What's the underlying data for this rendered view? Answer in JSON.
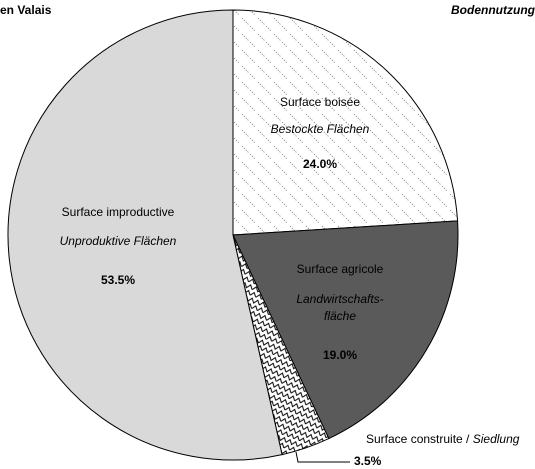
{
  "chart_data": {
    "type": "pie",
    "title": "en Valais",
    "subtitle": "Bodennutzung",
    "categories": [
      "Surface boisée",
      "Surface agricole",
      "Surface construite",
      "Surface improductive"
    ],
    "categories_de": [
      [
        "Bestockte Flächen"
      ],
      [
        "Landwirtschafts-",
        "fläche"
      ],
      [
        "Siedlung"
      ],
      [
        "Unproduktive Flächen"
      ]
    ],
    "label_separator": " / ",
    "values": [
      24.0,
      19.0,
      3.5,
      53.5
    ],
    "value_labels": [
      "24.0%",
      "19.0%",
      "3.5%",
      "53.5%"
    ],
    "colors": [
      "url(#pat-wood)",
      "#5a5a5a",
      "url(#pat-built)",
      "#d9d9d9"
    ]
  }
}
